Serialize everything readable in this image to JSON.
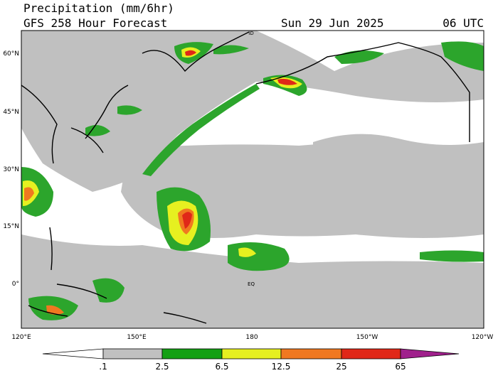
{
  "header": {
    "title": "Precipitation (mm/6hr)",
    "forecast": "GFS 258 Hour Forecast",
    "date": "Sun 29 Jun 2025",
    "time": "06 UTC"
  },
  "map": {
    "lat_labels": [
      "60°N",
      "45°N",
      "30°N",
      "15°N",
      "0°"
    ],
    "lon_labels": [
      "120°E",
      "150°E",
      "180",
      "150°W",
      "120°W"
    ],
    "annotations": [
      "ID",
      "EQ"
    ]
  },
  "colorbar": {
    "labels": [
      ".1",
      "2.5",
      "6.5",
      "12.5",
      "25",
      "65"
    ]
  }
}
